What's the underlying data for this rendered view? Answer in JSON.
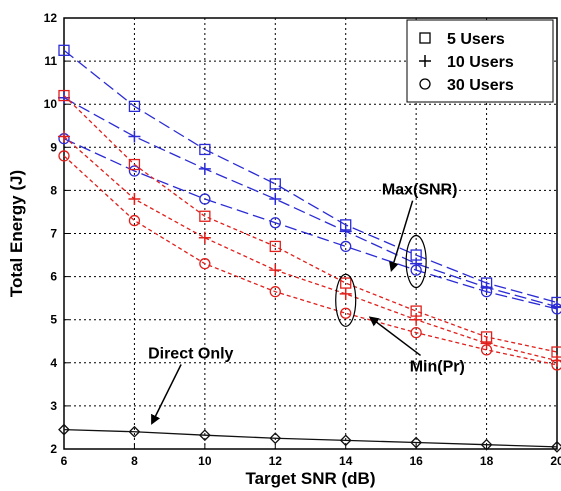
{
  "chart_data": {
    "type": "line",
    "title": "",
    "xlabel": "Target SNR (dB)",
    "ylabel": "Total Energy (J)",
    "xlim": [
      6,
      20
    ],
    "ylim": [
      2,
      12
    ],
    "x_ticks": [
      "6",
      "8",
      "10",
      "12",
      "14",
      "16",
      "18",
      "20"
    ],
    "y_ticks": [
      "2",
      "3",
      "4",
      "5",
      "6",
      "7",
      "8",
      "9",
      "10",
      "11",
      "12"
    ],
    "grid": true,
    "legend_position": "top-right",
    "legend": [
      {
        "label": "5 Users",
        "marker": "square"
      },
      {
        "label": "10 Users",
        "marker": "plus"
      },
      {
        "label": "30 Users",
        "marker": "circle"
      }
    ],
    "x": [
      6,
      8,
      10,
      12,
      14,
      16,
      18,
      20
    ],
    "series": [
      {
        "group": "Max(SNR)",
        "users": 5,
        "marker": "square",
        "color": "#2b2bd6",
        "dash": "long",
        "values": [
          11.25,
          9.95,
          8.95,
          8.15,
          7.2,
          6.5,
          5.85,
          5.4
        ]
      },
      {
        "group": "Max(SNR)",
        "users": 10,
        "marker": "plus",
        "color": "#2b2bd6",
        "dash": "long",
        "values": [
          10.15,
          9.25,
          8.5,
          7.8,
          7.05,
          6.3,
          5.75,
          5.3
        ]
      },
      {
        "group": "Max(SNR)",
        "users": 30,
        "marker": "circle",
        "color": "#2b2bd6",
        "dash": "long",
        "values": [
          9.2,
          8.45,
          7.8,
          7.25,
          6.7,
          6.15,
          5.65,
          5.25
        ]
      },
      {
        "group": "Min(Pr)",
        "users": 5,
        "marker": "square",
        "color": "#e0201c",
        "dash": "short",
        "values": [
          10.2,
          8.6,
          7.4,
          6.7,
          5.85,
          5.2,
          4.6,
          4.25
        ]
      },
      {
        "group": "Min(Pr)",
        "users": 10,
        "marker": "plus",
        "color": "#e0201c",
        "dash": "short",
        "values": [
          9.25,
          7.8,
          6.9,
          6.15,
          5.6,
          5.0,
          4.45,
          4.05
        ]
      },
      {
        "group": "Min(Pr)",
        "users": 30,
        "marker": "circle",
        "color": "#e0201c",
        "dash": "short",
        "values": [
          8.8,
          7.3,
          6.3,
          5.65,
          5.15,
          4.7,
          4.3,
          3.95
        ]
      },
      {
        "group": "Direct Only",
        "marker": "diamond",
        "color": "#111111",
        "dash": "solid",
        "values": [
          2.45,
          2.4,
          2.32,
          2.25,
          2.2,
          2.15,
          2.1,
          2.05
        ]
      }
    ],
    "annotations": [
      {
        "text": "Max(SNR)",
        "x": 16.1,
        "y": 7.9,
        "ellipse_center": [
          16,
          6.35
        ],
        "arrow_to": [
          15.3,
          6.15
        ]
      },
      {
        "text": "Min(Pr)",
        "x": 16.6,
        "y": 3.8,
        "ellipse_center": [
          14,
          5.45
        ],
        "arrow_to": [
          14.7,
          5.05
        ]
      },
      {
        "text": "Direct Only",
        "x": 9.6,
        "y": 4.1,
        "arrow_to": [
          8.5,
          2.6
        ]
      }
    ]
  }
}
